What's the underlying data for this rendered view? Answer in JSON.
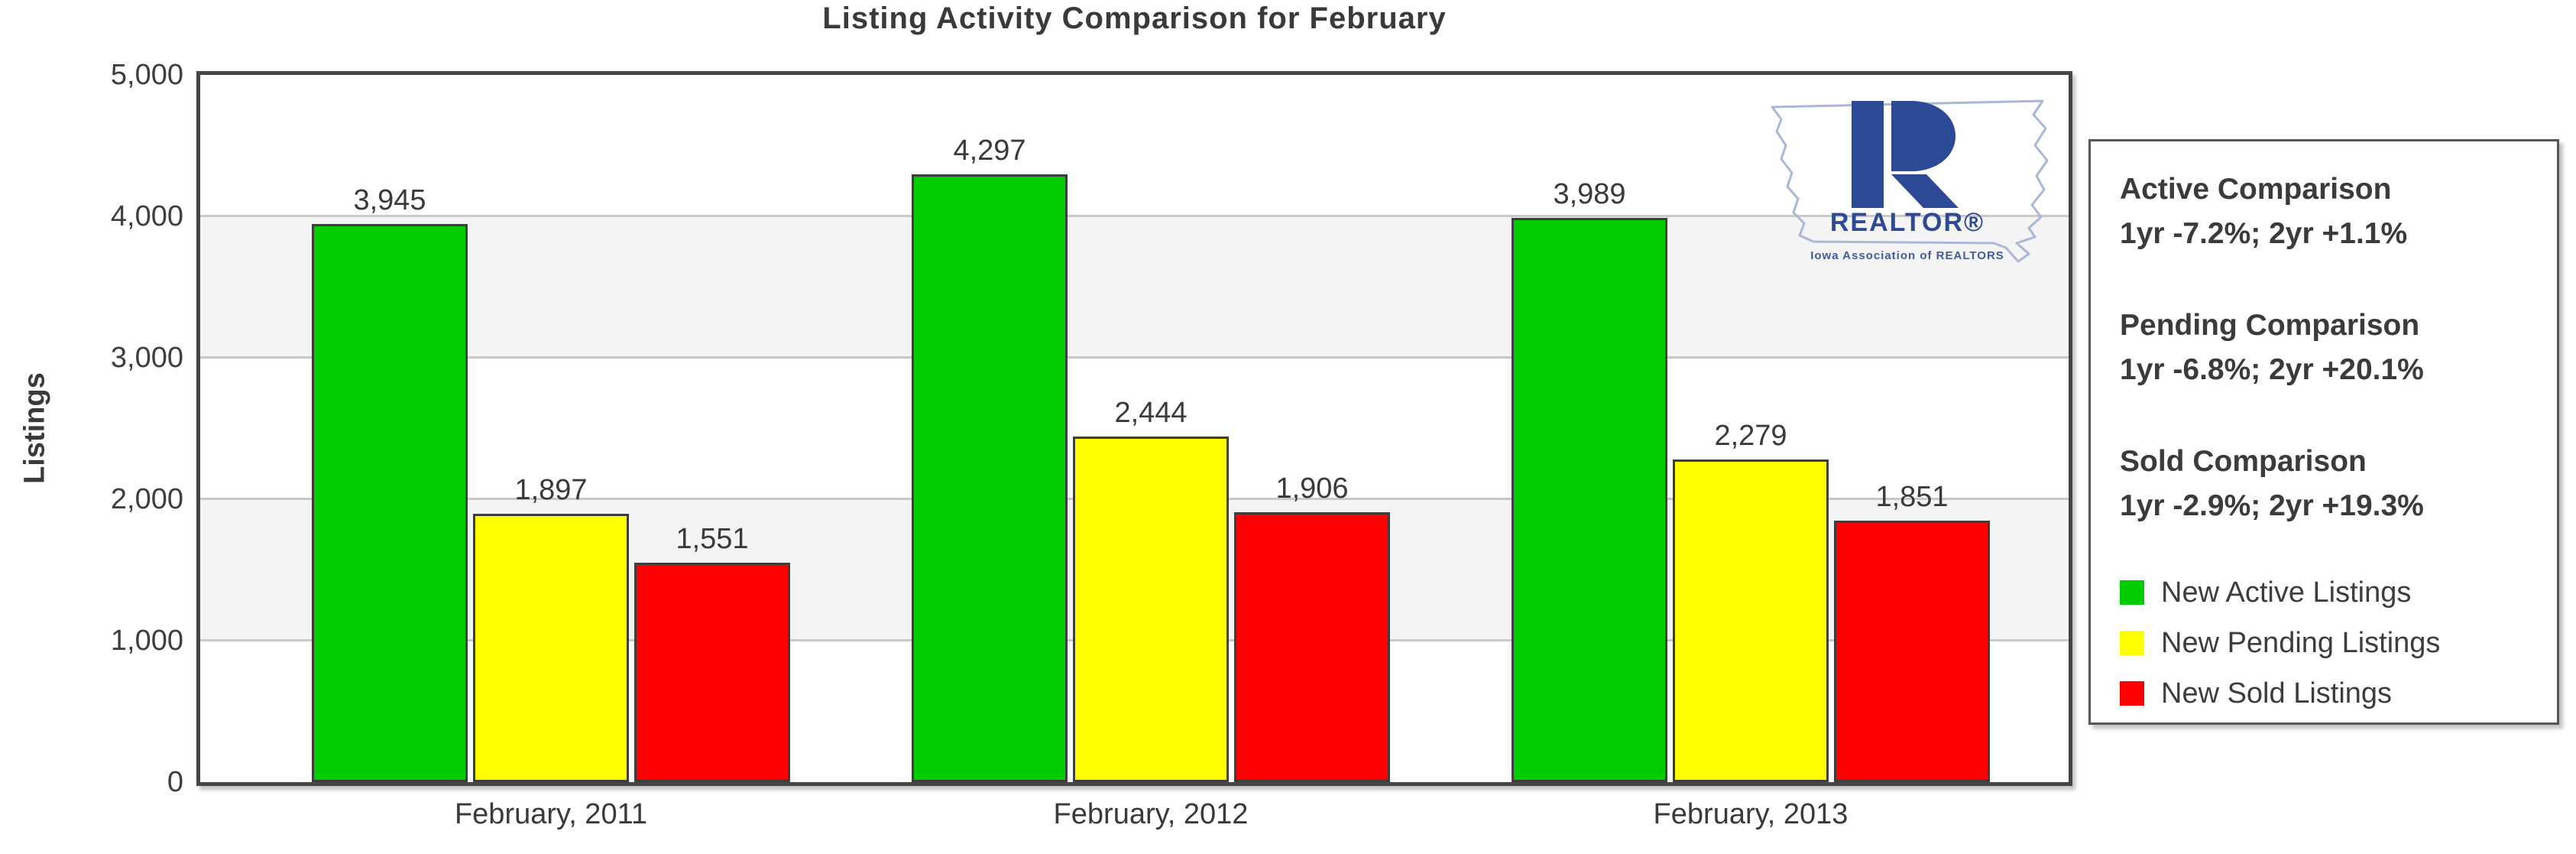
{
  "chart_data": {
    "type": "bar",
    "title": "Listing Activity Comparison for February",
    "xlabel": "",
    "ylabel": "Listings",
    "categories": [
      "February, 2011",
      "February, 2012",
      "February, 2013"
    ],
    "series": [
      {
        "name": "New Active Listings",
        "color": "#00cc00",
        "values": [
          3945,
          4297,
          3989
        ],
        "labels": [
          "3,945",
          "4,297",
          "3,989"
        ]
      },
      {
        "name": "New Pending Listings",
        "color": "#ffff00",
        "values": [
          1897,
          2444,
          2279
        ],
        "labels": [
          "1,897",
          "2,444",
          "2,279"
        ]
      },
      {
        "name": "New Sold Listings",
        "color": "#ff0000",
        "values": [
          1551,
          1906,
          1851
        ],
        "labels": [
          "1,551",
          "1,906",
          "1,851"
        ]
      }
    ],
    "ylim": [
      0,
      5000
    ],
    "yticks": [
      {
        "v": 5000,
        "label": "5,000"
      },
      {
        "v": 4000,
        "label": "4,000"
      },
      {
        "v": 3000,
        "label": "3,000"
      },
      {
        "v": 2000,
        "label": "2,000"
      },
      {
        "v": 1000,
        "label": "1,000"
      },
      {
        "v": 0,
        "label": "0"
      }
    ],
    "grid": true,
    "band_fill": "alternating horizontal bands",
    "legend_position": "right panel"
  },
  "panel": {
    "sections": [
      {
        "title": "Active Comparison",
        "value": "1yr -7.2%; 2yr +1.1%"
      },
      {
        "title": "Pending Comparison",
        "value": "1yr -6.8%; 2yr +20.1%"
      },
      {
        "title": "Sold Comparison",
        "value": "1yr -2.9%; 2yr +19.3%"
      }
    ],
    "legend": [
      {
        "label": "New Active Listings",
        "color": "#00cc00"
      },
      {
        "label": "New Pending Listings",
        "color": "#ffff00"
      },
      {
        "label": "New Sold Listings",
        "color": "#ff0000"
      }
    ]
  },
  "logo": {
    "realtor_text": "REALTOR®",
    "association_text": "Iowa Association of REALTORS",
    "r_color": "#2d4a96",
    "outline_color": "#a9b7d9"
  }
}
